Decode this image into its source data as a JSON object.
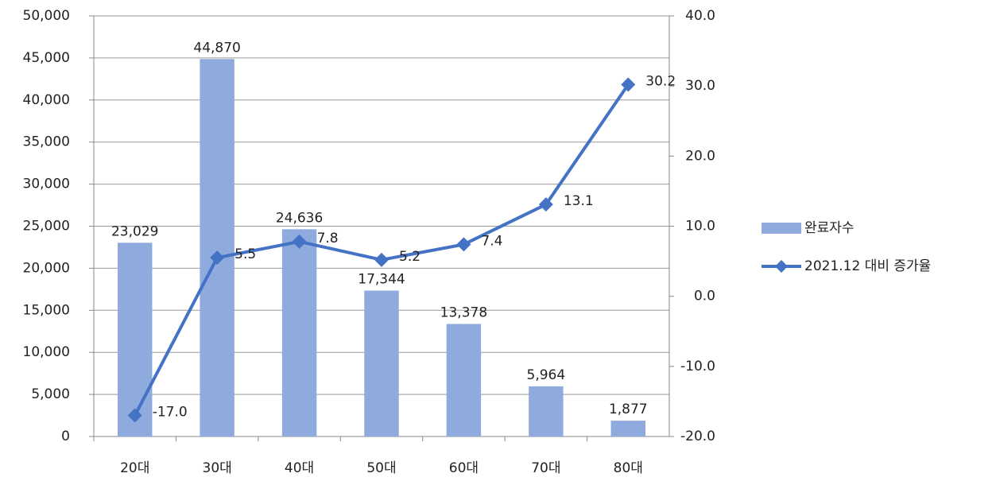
{
  "chart_data": {
    "type": "bar-line",
    "categories": [
      "20대",
      "30대",
      "40대",
      "50대",
      "60대",
      "70대",
      "80대"
    ],
    "series": [
      {
        "name": "완료자수",
        "type": "bar",
        "color": "#8faadc",
        "values": [
          23029,
          44870,
          24636,
          17344,
          13378,
          5964,
          1877
        ],
        "value_labels": [
          "23,029",
          "44,870",
          "24,636",
          "17,344",
          "13,378",
          "5,964",
          "1,877"
        ]
      },
      {
        "name": "2021.12 대비 증가율",
        "type": "line",
        "axis": "y2",
        "color": "#4472c4",
        "values": [
          -17.0,
          5.5,
          7.8,
          5.2,
          7.4,
          13.1,
          30.2
        ],
        "value_labels": [
          "-17.0",
          "5.5",
          "7.8",
          "5.2",
          "7.4",
          "13.1",
          "30.2"
        ]
      }
    ],
    "ylim": [
      0,
      50000
    ],
    "yticks": [
      0,
      {
        "value": 5000,
        "label": "5,000"
      },
      {
        "value": 10000,
        "label": "10,000"
      },
      {
        "value": 15000,
        "label": "15,000"
      },
      {
        "value": 20000,
        "label": "20,000"
      },
      {
        "value": 25000,
        "label": "25,000"
      },
      {
        "value": 30000,
        "label": "30,000"
      },
      {
        "value": 35000,
        "label": "35,000"
      },
      {
        "value": 40000,
        "label": "40,000"
      },
      {
        "value": 45000,
        "label": "45,000"
      },
      {
        "value": 50000,
        "label": "50,000"
      }
    ],
    "y2lim": [
      -20,
      40
    ],
    "y2ticks": [
      {
        "value": -20,
        "label": "-20.0"
      },
      {
        "value": -10,
        "label": "-10.0"
      },
      {
        "value": 0,
        "label": "0.0"
      },
      {
        "value": 10,
        "label": "10.0"
      },
      {
        "value": 20,
        "label": "20.0"
      },
      {
        "value": 30,
        "label": "30.0"
      },
      {
        "value": 40,
        "label": "40.0"
      }
    ],
    "grid": true,
    "legend": "right"
  }
}
